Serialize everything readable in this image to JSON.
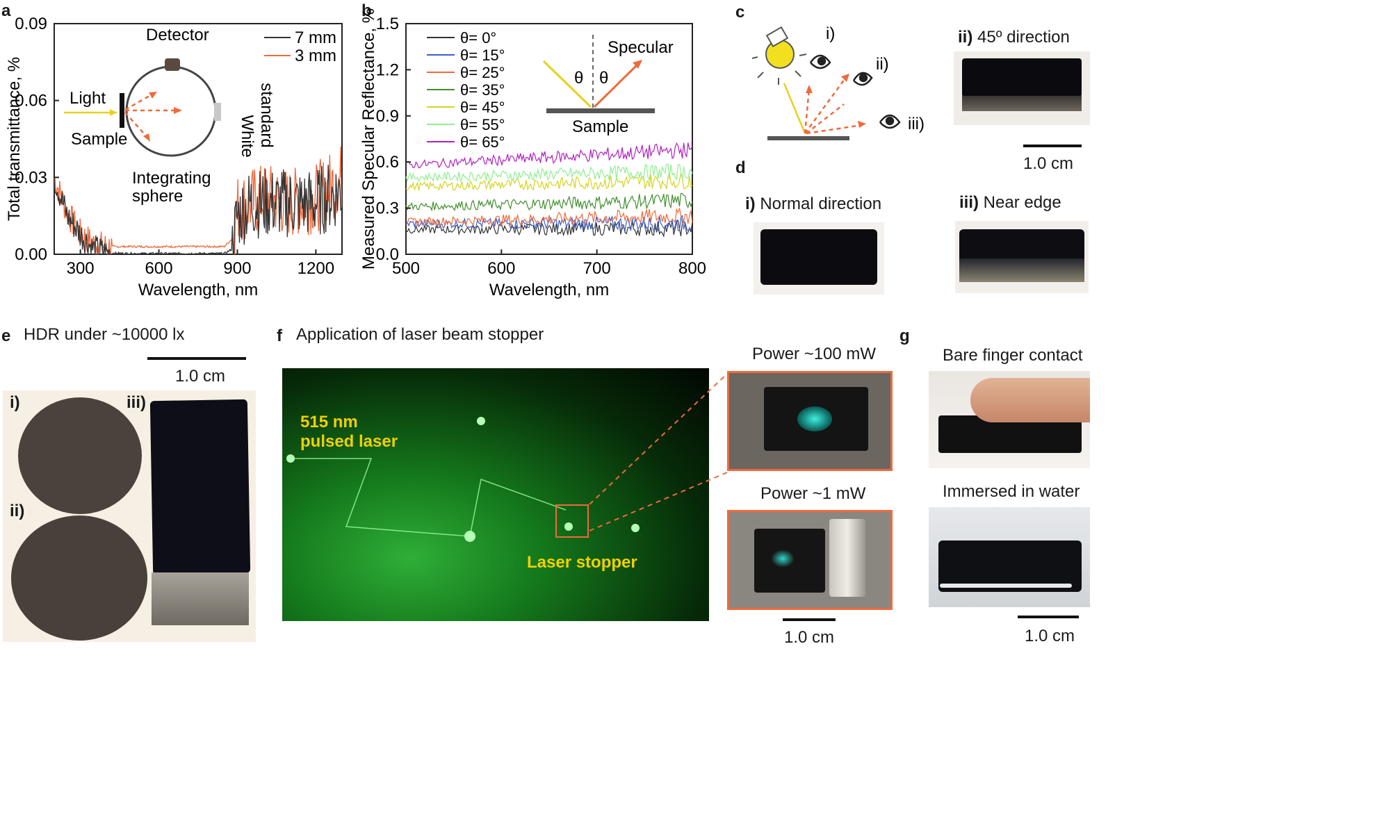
{
  "panels": {
    "a": {
      "label": "a",
      "ylabel": "Total transmittance, %",
      "xlabel": "Wavelength, nm",
      "yticks": [
        "0.00",
        "0.03",
        "0.06",
        "0.09"
      ],
      "xticks": [
        "300",
        "600",
        "900",
        "1200"
      ],
      "legend": [
        "7 mm",
        "3 mm"
      ],
      "inset": {
        "detector": "Detector",
        "light": "Light",
        "sample": "Sample",
        "white1": "White",
        "white2": "standard",
        "sphere1": "Integrating",
        "sphere2": "sphere"
      }
    },
    "b": {
      "label": "b",
      "ylabel": "Measured Specular Reflectance, %",
      "xlabel": "Wavelength, nm",
      "yticks": [
        "0.0",
        "0.3",
        "0.6",
        "0.9",
        "1.2",
        "1.5"
      ],
      "xticks": [
        "500",
        "600",
        "700",
        "800"
      ],
      "inset": {
        "specular": "Specular",
        "theta": "θ",
        "sample": "Sample"
      }
    },
    "c": {
      "label": "c",
      "views": [
        "i)",
        "ii)",
        "iii)"
      ],
      "photo_title_bold": "ii)",
      "photo_title": "45º direction",
      "scale": "1.0 cm"
    },
    "d": {
      "label": "d",
      "left_bold": "i)",
      "left_title": "Normal direction",
      "right_bold": "iii)",
      "right_title": "Near edge"
    },
    "e": {
      "label": "e",
      "title": "HDR under ~10000 lx",
      "scale": "1.0 cm",
      "samples": [
        "i)",
        "ii)",
        "iii)"
      ]
    },
    "f": {
      "label": "f",
      "title": "Application of laser beam stopper",
      "laser_line1": "515 nm",
      "laser_line2": "pulsed laser",
      "stopper": "Laser stopper",
      "power_high": "Power ~100 mW",
      "power_low": "Power ~1 mW",
      "scale": "1.0 cm"
    },
    "g": {
      "label": "g",
      "top_title": "Bare finger contact",
      "bottom_title": "Immersed in water",
      "scale": "1.0 cm"
    }
  },
  "chart_data": [
    {
      "panel": "a",
      "type": "line",
      "title": "",
      "xlabel": "Wavelength, nm",
      "ylabel": "Total transmittance, %",
      "xlim": [
        200,
        1300
      ],
      "ylim": [
        0,
        0.09
      ],
      "x": [
        200,
        250,
        300,
        350,
        400,
        500,
        600,
        700,
        800,
        850,
        880,
        900,
        950,
        1000,
        1100,
        1200,
        1300
      ],
      "series": [
        {
          "name": "7 mm",
          "color": "#333333",
          "values": [
            0.03,
            0.015,
            0.008,
            0.002,
            0.0005,
            0.0003,
            0.0003,
            0.0003,
            0.0003,
            0.0003,
            0.002,
            0.015,
            0.02,
            0.02,
            0.02,
            0.02,
            0.025
          ]
        },
        {
          "name": "3 mm",
          "color": "#ee6a3c",
          "values": [
            0.03,
            0.016,
            0.008,
            0.004,
            0.003,
            0.003,
            0.003,
            0.003,
            0.003,
            0.003,
            0.006,
            0.018,
            0.02,
            0.022,
            0.02,
            0.022,
            0.03
          ]
        }
      ]
    },
    {
      "panel": "b",
      "type": "line",
      "title": "",
      "xlabel": "Wavelength, nm",
      "ylabel": "Measured Specular Reflectance, %",
      "xlim": [
        500,
        800
      ],
      "ylim": [
        0,
        1.5
      ],
      "series": [
        {
          "name": "θ= 0°",
          "color": "#333333",
          "values": [
            0.16,
            0.17
          ]
        },
        {
          "name": "θ= 15°",
          "color": "#3a5fcd",
          "values": [
            0.2,
            0.2
          ]
        },
        {
          "name": "θ= 25°",
          "color": "#ee6a3c",
          "values": [
            0.21,
            0.25
          ]
        },
        {
          "name": "θ= 35°",
          "color": "#3f8f2a",
          "values": [
            0.31,
            0.35
          ]
        },
        {
          "name": "θ= 45°",
          "color": "#d4d41c",
          "values": [
            0.44,
            0.48
          ]
        },
        {
          "name": "θ= 55°",
          "color": "#90ee90",
          "values": [
            0.5,
            0.54
          ]
        },
        {
          "name": "θ= 65°",
          "color": "#b020c0",
          "values": [
            0.58,
            0.68
          ]
        }
      ]
    }
  ]
}
